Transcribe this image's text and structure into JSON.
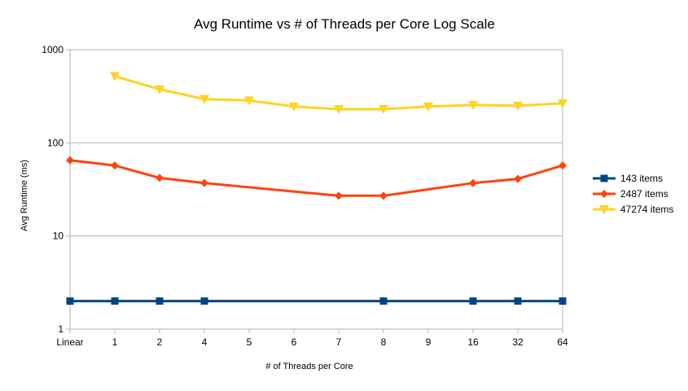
{
  "chart_data": {
    "type": "line",
    "title": "Avg Runtime vs # of Threads per Core Log Scale",
    "xlabel": "# of Threads per Core",
    "ylabel": "Avg Runtime (ms)",
    "y_scale": "log",
    "ylim": [
      1,
      1000
    ],
    "y_ticks": [
      "1",
      "10",
      "100",
      "1000"
    ],
    "y_tick_values": [
      1,
      10,
      100,
      1000
    ],
    "grid": "horizontal",
    "legend_position": "right",
    "categories": [
      "Linear",
      "1",
      "2",
      "4",
      "5",
      "6",
      "7",
      "8",
      "9",
      "16",
      "32",
      "64"
    ],
    "series": [
      {
        "name": "143 items",
        "color": "#004586",
        "marker": "square",
        "values": [
          2,
          2,
          2,
          2,
          null,
          null,
          null,
          2,
          null,
          2,
          2,
          2
        ]
      },
      {
        "name": "2487 items",
        "color": "#ff420e",
        "marker": "diamond",
        "values": [
          65,
          57,
          42,
          37,
          null,
          null,
          27,
          27,
          null,
          37,
          41,
          57
        ]
      },
      {
        "name": "47274 items",
        "color": "#ffd320",
        "marker": "triangle-down",
        "values": [
          null,
          520,
          375,
          295,
          285,
          245,
          230,
          230,
          245,
          255,
          250,
          265
        ]
      }
    ]
  }
}
